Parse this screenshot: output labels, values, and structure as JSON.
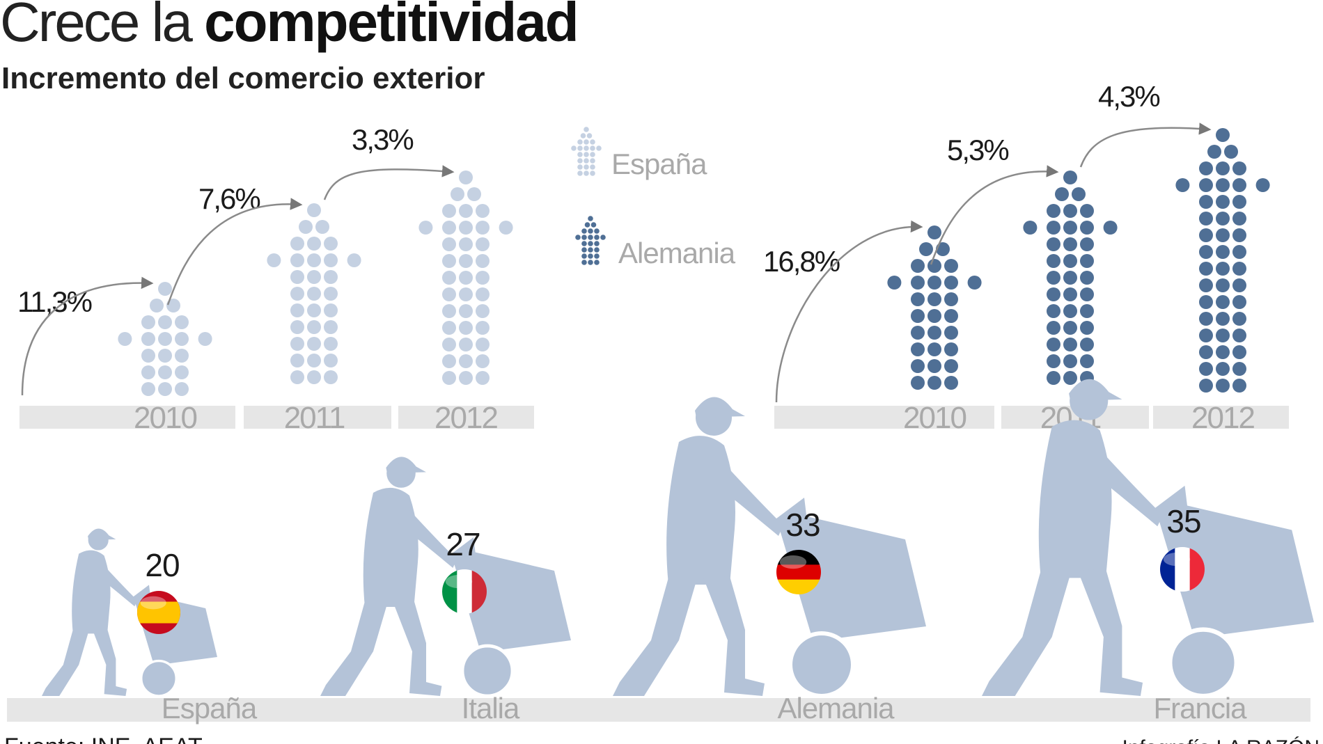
{
  "title_light": "Crece la",
  "title_bold": "competitividad",
  "subtitle": "Incremento del comercio exterior",
  "colors": {
    "espana": "#c5d1e2",
    "alemania": "#4f6f95",
    "silhouette": "#b4c3d8",
    "bar": "#e6e6e6",
    "year_text": "#a9a9a9",
    "text": "#1a1a1a"
  },
  "legend": {
    "espana": "España",
    "alemania": "Alemania"
  },
  "chart_data": [
    {
      "type": "bar",
      "series": [
        {
          "name": "España",
          "categories": [
            "2010",
            "2011",
            "2012"
          ],
          "values": [
            11.3,
            7.6,
            3.3
          ],
          "labels": [
            "11,3%",
            "7,6%",
            "3,3%"
          ]
        },
        {
          "name": "Alemania",
          "categories": [
            "2010",
            "2011",
            "2012"
          ],
          "values": [
            16.8,
            5.3,
            4.3
          ],
          "labels": [
            "16,8%",
            "5,3%",
            "4,3%"
          ]
        }
      ]
    },
    {
      "type": "bar",
      "categories": [
        "España",
        "Italia",
        "Alemania",
        "Francia"
      ],
      "values": [
        20,
        27,
        33,
        35
      ],
      "labels": [
        "20",
        "27",
        "33",
        "35"
      ],
      "flags": [
        "spain-flag",
        "italy-flag",
        "germany-flag",
        "france-flag"
      ]
    }
  ],
  "footer": {
    "source": "Fuente: INE, AEAT",
    "credit": "Infografía LA RAZÓN"
  }
}
